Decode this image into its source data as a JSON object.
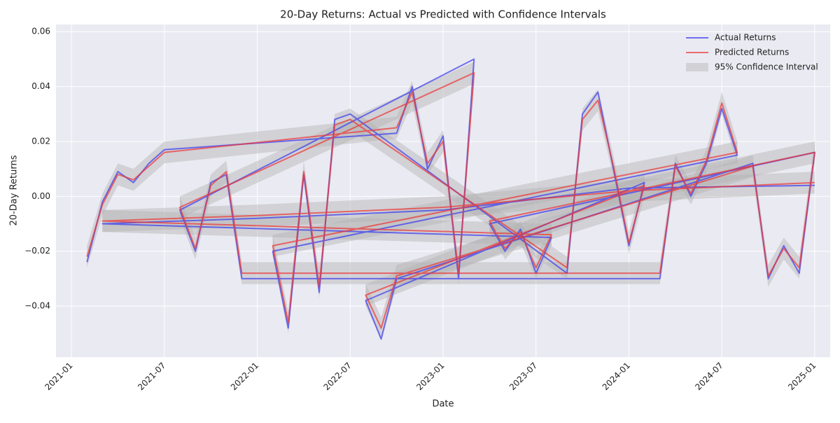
{
  "chart_data": {
    "type": "line",
    "title": "20-Day Returns: Actual vs Predicted with Confidence Intervals",
    "x_label": "Date",
    "y_label": "20-Day Returns",
    "x": [
      "2021-02",
      "2021-03",
      "2021-04",
      "2021-05",
      "2021-06",
      "2021-07",
      "2022-10",
      "2022-11",
      "2022-12",
      "2023-01",
      "2023-02",
      "2023-03",
      "2021-08",
      "2021-09",
      "2021-10",
      "2021-11",
      "2021-12",
      "2024-03",
      "2024-04",
      "2024-05",
      "2024-06",
      "2024-07",
      "2024-08",
      "2022-02",
      "2022-03",
      "2022-04",
      "2022-05",
      "2022-06",
      "2022-07",
      "2023-09",
      "2023-10",
      "2023-11",
      "2023-12",
      "2024-01",
      "2024-02",
      "2022-08",
      "2022-09",
      "2022-10",
      "2024-09",
      "2024-10",
      "2024-11",
      "2024-12",
      "2025-01",
      "2023-04",
      "2023-05",
      "2023-06",
      "2023-07",
      "2023-08",
      "2021-03",
      "2022-01",
      "2023-01",
      "2024-01",
      "2025-01"
    ],
    "series": [
      {
        "name": "Actual Returns",
        "color": "#3a3af0",
        "values": [
          -0.024,
          -0.002,
          0.009,
          0.005,
          0.012,
          0.017,
          0.023,
          0.04,
          0.01,
          0.022,
          -0.03,
          0.05,
          -0.005,
          -0.02,
          0.005,
          0.008,
          -0.03,
          -0.03,
          0.012,
          0.0,
          0.012,
          0.032,
          0.015,
          -0.02,
          -0.048,
          0.008,
          -0.035,
          0.028,
          0.03,
          -0.028,
          0.03,
          0.038,
          0.01,
          -0.018,
          0.005,
          -0.038,
          -0.052,
          -0.03,
          0.012,
          -0.03,
          -0.018,
          -0.028,
          0.016,
          -0.01,
          -0.02,
          -0.012,
          -0.028,
          -0.015,
          -0.01,
          -0.008,
          -0.005,
          0.003,
          0.004
        ]
      },
      {
        "name": "Predicted Returns",
        "color": "#ee3535",
        "values": [
          -0.022,
          -0.003,
          0.008,
          0.006,
          0.011,
          0.016,
          0.025,
          0.038,
          0.012,
          0.02,
          -0.028,
          0.045,
          -0.004,
          -0.019,
          0.004,
          0.009,
          -0.028,
          -0.028,
          0.011,
          0.001,
          0.013,
          0.034,
          0.016,
          -0.018,
          -0.046,
          0.009,
          -0.033,
          0.026,
          0.028,
          -0.026,
          0.028,
          0.035,
          0.011,
          -0.017,
          0.004,
          -0.036,
          -0.048,
          -0.029,
          0.011,
          -0.029,
          -0.019,
          -0.026,
          0.016,
          -0.009,
          -0.019,
          -0.013,
          -0.026,
          -0.014,
          -0.009,
          -0.007,
          -0.004,
          0.002,
          0.005
        ]
      }
    ],
    "confidence_interval": {
      "name": "95% Confidence Interval",
      "color": "#b4b4b4",
      "lower": [
        -0.026,
        -0.007,
        0.004,
        0.002,
        0.007,
        0.012,
        0.021,
        0.034,
        0.008,
        0.016,
        -0.032,
        0.041,
        -0.008,
        -0.023,
        0,
        0.005,
        -0.032,
        -0.032,
        0.007,
        -0.003,
        0.009,
        0.03,
        0.012,
        -0.022,
        -0.05,
        0.005,
        -0.037,
        0.022,
        0.024,
        -0.03,
        0.024,
        0.031,
        0.007,
        -0.021,
        0,
        -0.04,
        -0.052,
        -0.033,
        0.007,
        -0.033,
        -0.023,
        -0.03,
        0.012,
        -0.013,
        -0.023,
        -0.017,
        -0.03,
        -0.018,
        -0.013,
        -0.011,
        -0.008,
        -0.002,
        0.001
      ],
      "upper": [
        -0.018,
        0.001,
        0.012,
        0.01,
        0.015,
        0.02,
        0.029,
        0.042,
        0.016,
        0.024,
        -0.024,
        0.049,
        0,
        -0.015,
        0.008,
        0.013,
        -0.024,
        -0.024,
        0.015,
        0.005,
        0.017,
        0.038,
        0.02,
        -0.014,
        -0.042,
        0.013,
        -0.029,
        0.03,
        0.032,
        -0.022,
        0.032,
        0.039,
        0.015,
        -0.013,
        0.008,
        -0.032,
        -0.044,
        -0.025,
        0.015,
        -0.025,
        -0.015,
        -0.022,
        0.02,
        -0.005,
        -0.015,
        -0.009,
        -0.022,
        -0.01,
        -0.005,
        -0.003,
        0,
        0.006,
        0.009
      ]
    },
    "xlim": [
      "2020-12",
      "2025-02"
    ],
    "xticks": [
      "2021-01",
      "2021-07",
      "2022-01",
      "2022-07",
      "2023-01",
      "2023-07",
      "2024-01",
      "2024-07",
      "2025-01"
    ],
    "ylim": [
      -0.0586,
      0.0626
    ],
    "yticks": [
      {
        "value": -0.04,
        "label": "−0.04"
      },
      {
        "value": -0.02,
        "label": "−0.02"
      },
      {
        "value": 0,
        "label": "0.00"
      },
      0.02,
      0.04,
      0.06
    ],
    "grid": true,
    "legend": "upper right"
  }
}
